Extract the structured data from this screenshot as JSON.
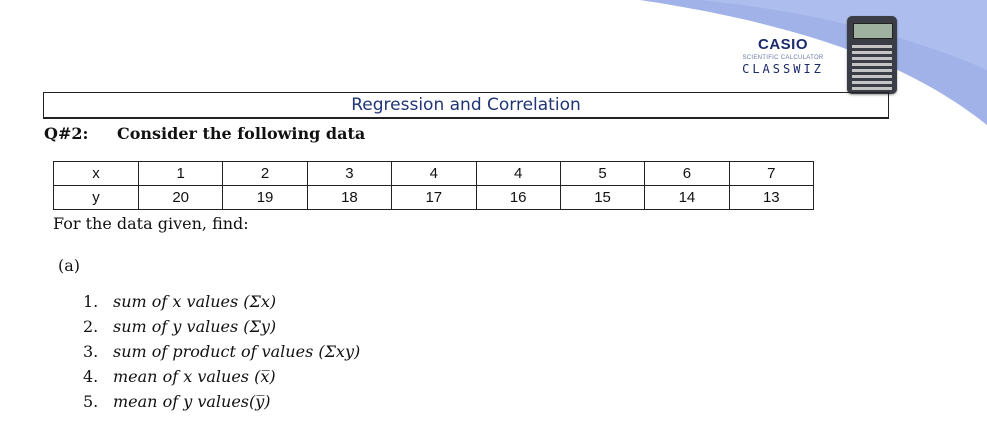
{
  "brand": {
    "name": "CASIO",
    "tagline": "SCIENTIFIC CALCULATOR",
    "model": "CLASSWIZ"
  },
  "colors": {
    "swoosh": "#8fa5e4",
    "title_text": "#1f3576"
  },
  "header": {
    "title": "Regression and Correlation"
  },
  "question": {
    "number": "Q#2:",
    "text": "Consider the following data"
  },
  "table": {
    "x_label": "x",
    "y_label": "y",
    "x": [
      "1",
      "2",
      "3",
      "4",
      "4",
      "5",
      "6",
      "7"
    ],
    "y": [
      "20",
      "19",
      "18",
      "17",
      "16",
      "15",
      "14",
      "13"
    ]
  },
  "instruction": "For the data given, find:",
  "part_label": "(a)",
  "tasks": [
    {
      "num": "1.",
      "text": "sum of x values (Σx)"
    },
    {
      "num": "2.",
      "text": "sum of y values (Σy)"
    },
    {
      "num": "3.",
      "text": "sum of product of values (Σxy)"
    },
    {
      "num": "4.",
      "text": "mean of x values (x̅)"
    },
    {
      "num": "5.",
      "text": "mean of y values(y̅)"
    }
  ]
}
